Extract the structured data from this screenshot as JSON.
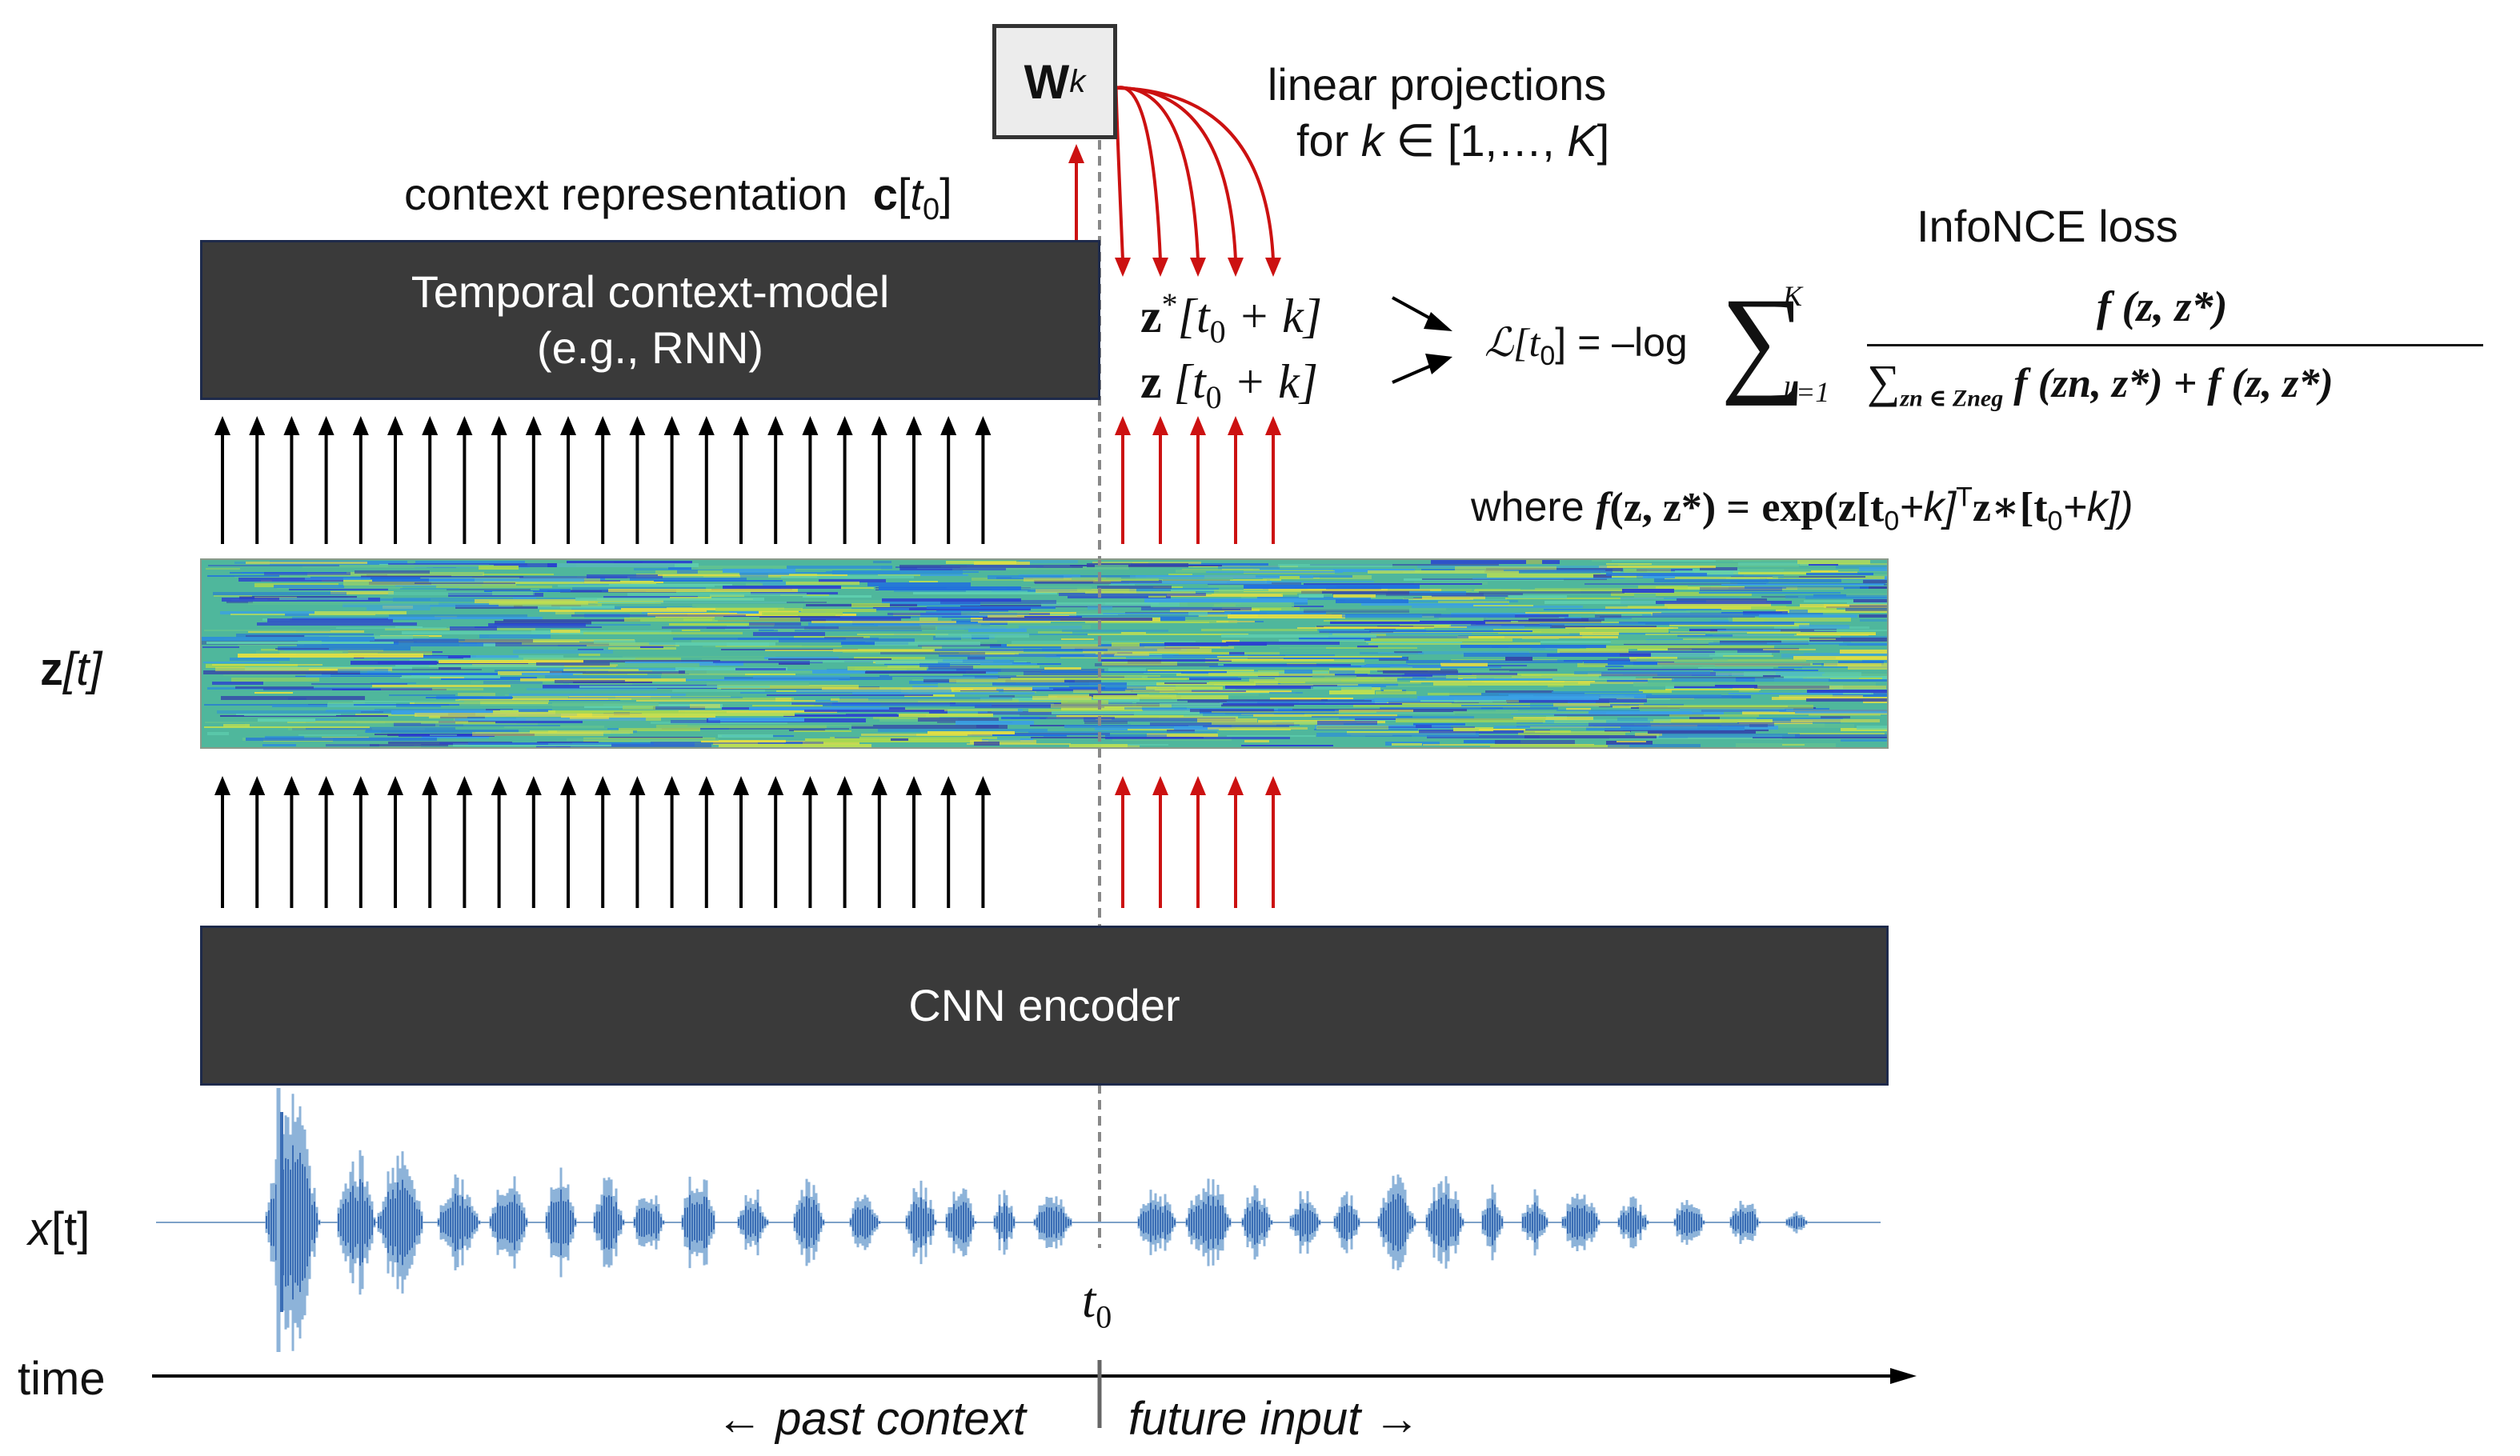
{
  "weight_box": {
    "symbol": "W",
    "subscript": "k"
  },
  "linear_projections": {
    "line1": "linear projections",
    "line2_prefix": "for",
    "line2_var": "k",
    "line2_rest": "∈ [1,…,",
    "line2_K": "K",
    "line2_end": "]"
  },
  "context_label": {
    "text": "context representation",
    "symbol": "c",
    "bracket_open": "[",
    "var": "t",
    "sub": "0",
    "bracket_close": "]"
  },
  "context_model": {
    "line1": "Temporal context-model",
    "line2": "(e.g., RNN)"
  },
  "predictions": {
    "zstar": {
      "symbol": "z",
      "sup": "*",
      "arg": "[t",
      "sub": "0",
      "rest": " + k]"
    },
    "z": {
      "symbol": "z",
      "arg": " [t",
      "sub": "0",
      "rest": " + k]"
    }
  },
  "loss": {
    "title": "InfoNCE loss",
    "lhs": "ℒ[t",
    "lhs_sub": "0",
    "lhs_end": "] = –log",
    "sum_sym": "∑",
    "sum_upper": "K",
    "sum_lower": "k=1",
    "numerator": "f (z, z*)",
    "denominator_sum": "∑",
    "denominator_sub": "zn ∈ Zneg",
    "denominator_rest": "f (zn, z*) + f (z, z*)"
  },
  "where": {
    "prefix": "where",
    "f": "f",
    "args": "(z, z*) =",
    "exp": "exp(z[t",
    "sub": "0",
    "mid": "+k]",
    "sup": "T",
    "tail": "z∗[t",
    "sub2": "0",
    "end": "+k])"
  },
  "z_label": {
    "symbol": "z",
    "rest": "[t]"
  },
  "encoder": {
    "label": "CNN encoder"
  },
  "x_label": {
    "symbol": "x",
    "rest": "[t]"
  },
  "t0_label": {
    "var": "t",
    "sub": "0"
  },
  "time_axis": {
    "label": "time",
    "past": "past context",
    "future": "future input",
    "left_arrow": "←",
    "right_arrow": "→"
  },
  "colors": {
    "box": "#3a3a3a",
    "red": "#cc1111",
    "black": "#000000",
    "wave": "#3a6db5",
    "wave_light": "#8db3d9",
    "dash": "#888888"
  },
  "arrows": {
    "past_count": 23,
    "future_count": 5
  }
}
